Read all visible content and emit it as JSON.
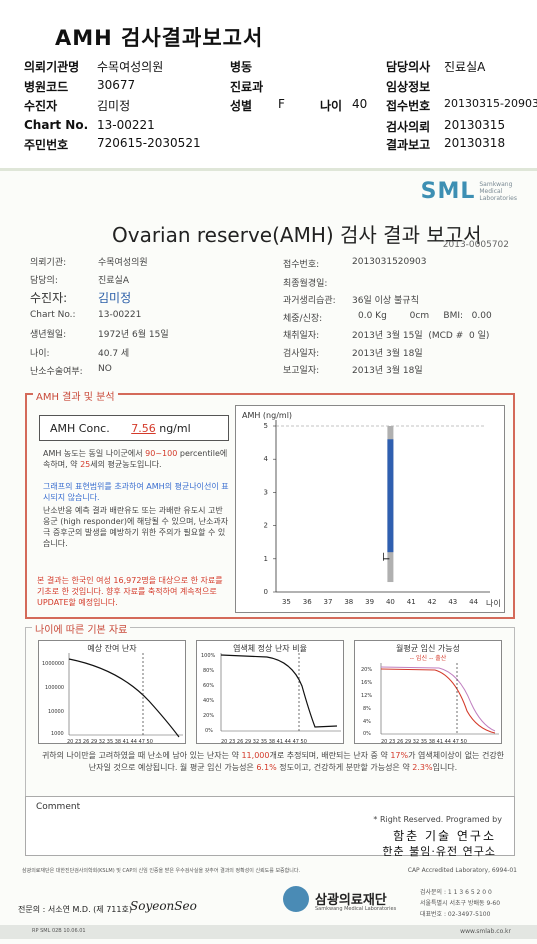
{
  "title": "AMH 검사결과보고서",
  "header": {
    "r1": [
      "의뢰기관명",
      "수목여성의원",
      "병동",
      "",
      "담당의사",
      "진료실A"
    ],
    "r2": [
      "병원코드",
      "30677",
      "진료과",
      "",
      "임상정보",
      ""
    ],
    "r3": [
      "수진자",
      "김미정",
      "성별",
      "F",
      "나이",
      "40",
      "접수번호",
      "20130315-20903"
    ],
    "r4": [
      "Chart No.",
      "13-00221",
      "검사의뢰",
      "20130315"
    ],
    "r5": [
      "주민번호",
      "720615-2030521",
      "결과보고",
      "20130318"
    ]
  },
  "report": {
    "logo": "SML",
    "logo_sub1": "Samkwang",
    "logo_sub2": "Medical",
    "logo_sub3": "Laboratories",
    "title": "Ovarian reserve(AMH) 검사 결과 보고서",
    "number": "2013-0005702",
    "left": [
      {
        "k": "의뢰기관:",
        "v": "수목여성의원"
      },
      {
        "k": "담당의:",
        "v": "진료실A"
      },
      {
        "k": "수진자:",
        "v": "김미정"
      },
      {
        "k": "Chart No.:",
        "v": "13-00221"
      },
      {
        "k": "생년월일:",
        "v": "1972년 6월 15일"
      },
      {
        "k": "나이:",
        "v": "40.7 세"
      },
      {
        "k": "난소수술여부:",
        "v": "NO"
      }
    ],
    "right": [
      {
        "k": "접수번호:",
        "v": "2013031520903"
      },
      {
        "k": "최종월경일:",
        "v": ""
      },
      {
        "k": "과거생리습관:",
        "v": "36일 이상 불규칙"
      },
      {
        "k": "체중/신장:",
        "v": "0.0 Kg        0cm     BMI:   0.00"
      },
      {
        "k": "채취일자:",
        "v": "2013년 3월 15일  (MCD #  0 일)"
      },
      {
        "k": "검사일자:",
        "v": "2013년 3월 18일"
      },
      {
        "k": "보고일자:",
        "v": "2013년 3월 18일"
      }
    ]
  },
  "amh": {
    "section": "AMH 결과 및 분석",
    "conc_label": "AMH Conc.",
    "conc_value": "7.56",
    "conc_unit": "ng/ml",
    "p1a": "AMH 농도는 동일 나이군에서",
    "p1b": "90~100",
    "p1c": "percentile에 속하며, 약",
    "p1d": "25",
    "p1e": "세의 평균농도입니다.",
    "p2": "그래프의 표현범위를 초과하여 AMH의 평균나이선이 표시되지 않습니다.",
    "p3": "난소반응 예측 결과 배란유도 또는 과배란 유도시 고반응군 (high responder)에 해당될 수 있으며, 난소과자극 증후군의 발생을 예방하기 위한 주의가 필요할 수 있습니다.",
    "p4": "본 결과는 한국인 여성 16,972명을 대상으로 한 자료를 기초로 한 것입니다. 향후 자료를 축적하여 계속적으로 UPDATE할 예정입니다."
  },
  "chart_data": {
    "type": "bar",
    "ylabel": "AMH (ng/ml)",
    "xlabel": "나이",
    "categories": [
      "35",
      "36",
      "37",
      "38",
      "39",
      "40",
      "41",
      "42",
      "43",
      "44"
    ],
    "ylim": [
      0,
      5
    ],
    "yticks": [
      "0",
      "1",
      "2",
      "3",
      "4",
      "5"
    ],
    "patient_age": 40,
    "range_low": 0.3,
    "range_high": 5,
    "blue_range": [
      1.2,
      4.6
    ],
    "marker": 1.0
  },
  "age": {
    "section": "나이에 따른 기본 자료",
    "p1": "예상 잔여 난자",
    "p2": "염색체 정상 난자 비율",
    "p3": "월평균 임신 가능성",
    "p3_legend": "-- 임신 -- 출산",
    "p1_y": [
      "1000000",
      "100000",
      "10000",
      "1000"
    ],
    "p2_y": [
      "100%",
      "80%",
      "60%",
      "40%",
      "20%",
      "0%"
    ],
    "p3_y": [
      "20%",
      "16%",
      "12%",
      "8%",
      "4%",
      "0%"
    ],
    "x_ticks": "20 23 26 29 32 35 38 41 44 47 50",
    "text1": "귀하의 나이만을 고려하였을 때 난소에 남아 있는 난자는 약",
    "eggs": "11,000",
    "text2": "개로 추정되며, 배란되는 난자 중 약",
    "chrom": "17%",
    "text3": "가 염색체이상이 없는 건강한 난자일 것으로 예상됩니다. 월 평균 임신 가능성은",
    "preg": "6.1%",
    "text4": "정도이고, 건강하게 분만할 가능성은 약",
    "birth": "2.3%",
    "text5": "입니다."
  },
  "comment": {
    "label": "Comment"
  },
  "sign": {
    "line1": "* Right Reserved. Programed by",
    "line2": "함춘 기술 연구소",
    "line3": "한춘 불임·유전 연구소"
  },
  "footer": {
    "cert": "삼광의료재단은 대한진단검사의학회(KSLM) 및 CAP의 신임 인증을 받은 우수검사실을 갖추어 결과의 정확성이 신뢰도를 보증합니다.",
    "cap": "CAP  Accredited  Laboratory,  6994-01",
    "doctor": "전문의 : 서소연 M.D. (제 711호)",
    "signature": "SoyeonSeo",
    "foundation": "삼광의료재단",
    "foundation_en": "Samkwang Medical Laboratories",
    "contact1": "검사문의 : 1 1 3 6 5 2 0 0",
    "contact2": "서울특별시 서초구 방배동 9-60",
    "contact3": "대표번호 : 02-3497-5100",
    "code": "RP  SML  02B  10.06.01",
    "web": "www.smlab.co.kr"
  }
}
